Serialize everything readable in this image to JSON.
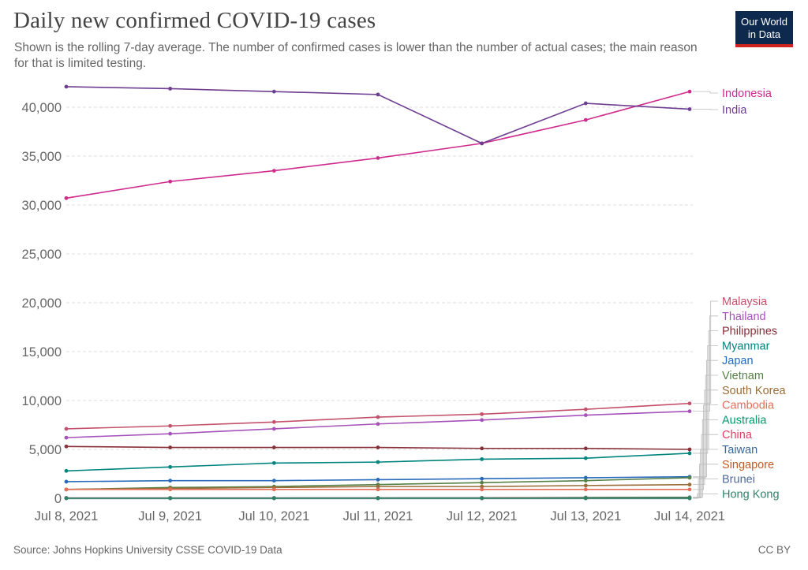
{
  "header": {
    "title": "Daily new confirmed COVID-19 cases",
    "subtitle": "Shown is the rolling 7-day average. The number of confirmed cases is lower than the number of actual cases; the main reason for that is limited testing."
  },
  "logo": {
    "line1": "Our World",
    "line2": "in Data",
    "bg": "#0d2a4e",
    "accent": "#ce261e"
  },
  "footer": {
    "source": "Source: Johns Hopkins University CSSE COVID-19 Data",
    "license": "CC BY"
  },
  "chart_data": {
    "type": "line",
    "x": [
      "Jul 8, 2021",
      "Jul 9, 2021",
      "Jul 10, 2021",
      "Jul 11, 2021",
      "Jul 12, 2021",
      "Jul 13, 2021",
      "Jul 14, 2021"
    ],
    "ylim": [
      0,
      42000
    ],
    "yticks": [
      0,
      5000,
      10000,
      15000,
      20000,
      25000,
      30000,
      35000,
      40000
    ],
    "ytick_labels": [
      "0",
      "5,000",
      "10,000",
      "15,000",
      "20,000",
      "25,000",
      "30,000",
      "35,000",
      "40,000"
    ],
    "grid": true,
    "legend": "right-end-labels",
    "series": [
      {
        "name": "Indonesia",
        "color": "#cf2b8d",
        "values": [
          30700,
          32400,
          33500,
          34800,
          36300,
          38700,
          41600
        ]
      },
      {
        "name": "India",
        "color": "#6d3e91",
        "values": [
          42100,
          41900,
          41600,
          41300,
          36300,
          40400,
          39800
        ]
      },
      {
        "name": "Malaysia",
        "color": "#c4516b",
        "values": [
          7100,
          7400,
          7800,
          8300,
          8600,
          9100,
          9700
        ]
      },
      {
        "name": "Thailand",
        "color": "#a652ba",
        "values": [
          6200,
          6600,
          7100,
          7600,
          8000,
          8500,
          8900
        ]
      },
      {
        "name": "Philippines",
        "color": "#883039",
        "values": [
          5300,
          5200,
          5200,
          5200,
          5100,
          5100,
          5000
        ]
      },
      {
        "name": "Myanmar",
        "color": "#00847e",
        "values": [
          2800,
          3200,
          3600,
          3700,
          4000,
          4100,
          4600
        ]
      },
      {
        "name": "Japan",
        "color": "#286bbb",
        "values": [
          1700,
          1800,
          1800,
          1900,
          2000,
          2100,
          2200
        ]
      },
      {
        "name": "Vietnam",
        "color": "#578145",
        "values": [
          900,
          1100,
          1200,
          1400,
          1600,
          1800,
          2100
        ]
      },
      {
        "name": "South Korea",
        "color": "#996d39",
        "values": [
          900,
          1000,
          1100,
          1200,
          1200,
          1300,
          1400
        ]
      },
      {
        "name": "Cambodia",
        "color": "#e56e5a",
        "values": [
          900,
          900,
          900,
          900,
          900,
          900,
          900
        ]
      },
      {
        "name": "Australia",
        "color": "#009b6a",
        "values": [
          20,
          20,
          20,
          30,
          40,
          80,
          100
        ]
      },
      {
        "name": "China",
        "color": "#e53b61",
        "values": [
          30,
          30,
          30,
          30,
          30,
          40,
          40
        ]
      },
      {
        "name": "Taiwan",
        "color": "#38679a",
        "values": [
          30,
          30,
          30,
          30,
          30,
          30,
          30
        ]
      },
      {
        "name": "Singapore",
        "color": "#c15b28",
        "values": [
          20,
          20,
          20,
          20,
          20,
          30,
          40
        ]
      },
      {
        "name": "Brunei",
        "color": "#4c6a9c",
        "values": [
          0,
          0,
          0,
          0,
          0,
          0,
          0
        ]
      },
      {
        "name": "Hong Kong",
        "color": "#2b8465",
        "values": [
          0,
          0,
          0,
          0,
          0,
          0,
          0
        ]
      }
    ]
  }
}
